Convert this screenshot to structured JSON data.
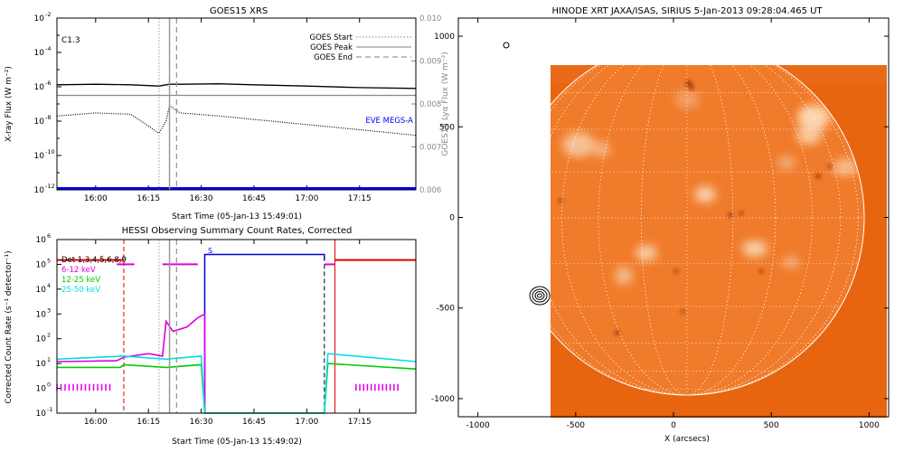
{
  "chart_data": [
    {
      "type": "line",
      "title": "GOES15 XRS",
      "flare_class": "C1.3",
      "xlabel": "Start Time (05-Jan-13 15:49:01)",
      "ylabel": "X-ray Flux (W m⁻²)",
      "ylabel_right": "GOES15 Lyα Flux (W m⁻²)",
      "xlim": [
        "15:49",
        "17:31"
      ],
      "x_ticks": [
        "16:00",
        "16:15",
        "16:30",
        "16:45",
        "17:00",
        "17:15"
      ],
      "y_scale": "log",
      "ylim": [
        1e-12,
        0.01
      ],
      "y_ticks": [
        {
          "label": "10",
          "exp": "-12",
          "exp_val": -12
        },
        {
          "label": "10",
          "exp": "-10",
          "exp_val": -10
        },
        {
          "label": "10",
          "exp": "-8",
          "exp_val": -8
        },
        {
          "label": "10",
          "exp": "-6",
          "exp_val": -6
        },
        {
          "label": "10",
          "exp": "-4",
          "exp_val": -4
        },
        {
          "label": "10",
          "exp": "-2",
          "exp_val": -2
        }
      ],
      "y2lim": [
        0.006,
        0.01
      ],
      "y2_ticks": [
        "0.006",
        "0.007",
        "0.008",
        "0.009",
        "0.010"
      ],
      "legend": [
        "GOES Start",
        "GOES Peak",
        "GOES End"
      ],
      "legend_placement": "top-right",
      "event_times": {
        "start": "16:18",
        "peak": "16:21",
        "end": "16:23"
      },
      "eve_label": "EVE MEGS-A",
      "series": [
        {
          "style": "solid",
          "color": "#000000",
          "x": [
            "15:49",
            "16:00",
            "16:10",
            "16:18",
            "16:21",
            "16:25",
            "16:35",
            "16:45",
            "17:00",
            "17:15",
            "17:31"
          ],
          "y": [
            1.3e-06,
            1.4e-06,
            1.3e-06,
            1.1e-06,
            1.4e-06,
            1.4e-06,
            1.5e-06,
            1.3e-06,
            1.1e-06,
            9e-07,
            8e-07
          ]
        },
        {
          "style": "dotted",
          "color": "#000000",
          "x": [
            "15:49",
            "16:00",
            "16:10",
            "16:18",
            "16:20",
            "16:21",
            "16:24",
            "16:35",
            "16:50",
            "17:05",
            "17:20",
            "17:31"
          ],
          "y": [
            2e-08,
            3e-08,
            2.5e-08,
            2e-09,
            1e-08,
            8e-08,
            3e-08,
            2e-08,
            1e-08,
            5e-09,
            2.5e-09,
            1.5e-09
          ]
        },
        {
          "style": "solid",
          "color": "#888888",
          "axis": "right",
          "x": [
            "15:49",
            "16:30",
            "17:31"
          ],
          "y": [
            0.0082,
            0.0082,
            0.0082
          ]
        },
        {
          "name": "EVE MEGS-A",
          "style": "solid",
          "color": "#0000ff",
          "x": [
            "15:49",
            "17:31"
          ],
          "y": [
            1.2e-12,
            1.2e-12
          ]
        }
      ]
    },
    {
      "type": "line",
      "title": "HESSI Observing Summary Count Rates, Corrected",
      "xlabel": "Start Time (05-Jan-13 15:49:02)",
      "ylabel": "Corrected Count Rate (s⁻¹ detector⁻¹)",
      "xlim": [
        "15:49",
        "17:31"
      ],
      "x_ticks": [
        "16:00",
        "16:15",
        "16:30",
        "16:45",
        "17:00",
        "17:15"
      ],
      "y_scale": "log",
      "ylim": [
        0.1,
        1000000.0
      ],
      "y_ticks": [
        {
          "label": "10",
          "exp": "-1",
          "exp_val": -1
        },
        {
          "label": "10",
          "exp": "0",
          "exp_val": 0
        },
        {
          "label": "10",
          "exp": "1",
          "exp_val": 1
        },
        {
          "label": "10",
          "exp": "2",
          "exp_val": 2
        },
        {
          "label": "10",
          "exp": "3",
          "exp_val": 3
        },
        {
          "label": "10",
          "exp": "4",
          "exp_val": 4
        },
        {
          "label": "10",
          "exp": "5",
          "exp_val": 5
        },
        {
          "label": "10",
          "exp": "6",
          "exp_val": 6
        }
      ],
      "legend_header": "Det 1,3,4,5,6,8,9",
      "legend": [
        {
          "name": "6-12 keV",
          "color": "#e000e0"
        },
        {
          "name": "12-25 keV",
          "color": "#00cc00"
        },
        {
          "name": "25-50 keV",
          "color": "#00e0e0"
        }
      ],
      "s_label": "S",
      "series": [
        {
          "name": "6-12 keV",
          "color": "#e000e0",
          "x": [
            "15:49",
            "16:06",
            "16:08",
            "16:15",
            "16:19",
            "16:20",
            "16:22",
            "16:26",
            "16:29",
            "16:31",
            "16:31"
          ],
          "y": [
            12,
            13,
            18,
            25,
            20,
            500,
            200,
            300,
            700,
            1000,
            0.1
          ]
        },
        {
          "name": "12-25 keV",
          "color": "#00cc00",
          "x": [
            "15:49",
            "16:07",
            "16:08",
            "16:20",
            "16:30",
            "16:31",
            "17:05",
            "17:06",
            "17:31"
          ],
          "y": [
            7,
            7,
            9,
            7,
            9,
            0.1,
            0.1,
            10,
            6
          ]
        },
        {
          "name": "25-50 keV",
          "color": "#00e0e0",
          "x": [
            "15:49",
            "16:08",
            "16:20",
            "16:30",
            "16:31",
            "17:05",
            "17:06",
            "17:31"
          ],
          "y": [
            15,
            20,
            15,
            20,
            0.1,
            0.1,
            25,
            12
          ]
        }
      ]
    },
    {
      "type": "heatmap",
      "title": "HINODE XRT JAXA/ISAS, SIRIUS  5-Jan-2013 09:28:04.465 UT",
      "xlabel": "X (arcsecs)",
      "ylabel": "",
      "xlim": [
        -1100,
        1100
      ],
      "ylim": [
        -1100,
        1100
      ],
      "x_ticks": [
        "-1000",
        "-500",
        "0",
        "500",
        "1000"
      ],
      "y_ticks": [
        "1000",
        "500",
        "0",
        "-500",
        "-1000"
      ],
      "colormap": "orange",
      "limb_radius": 975,
      "grid": "on",
      "contour_center": [
        -820,
        -440
      ],
      "small_circle_center": [
        -1000,
        940
      ]
    }
  ]
}
